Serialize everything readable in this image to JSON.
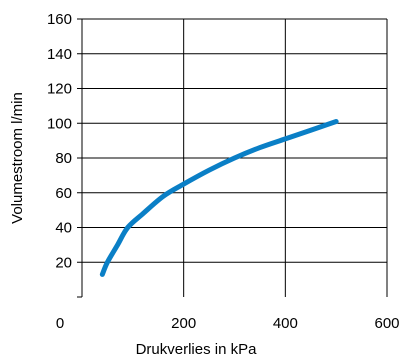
{
  "chart_data": {
    "type": "line",
    "title": "",
    "xlabel": "Drukverlies in kPa",
    "ylabel": "Volumestroom l/min",
    "xlim": [
      0,
      600
    ],
    "ylim": [
      0,
      160
    ],
    "x_ticks": [
      "0",
      "200",
      "400",
      "600"
    ],
    "y_ticks": [
      "20",
      "40",
      "60",
      "80",
      "100",
      "120",
      "140",
      "160"
    ],
    "grid": true,
    "legend": "none",
    "series_color": "#0a7fc6",
    "series": [
      {
        "x": [
          40,
          50,
          70,
          90,
          120,
          160,
          200,
          250,
          300,
          350,
          400,
          450,
          500
        ],
        "y": [
          13,
          20,
          30,
          40,
          48,
          58,
          65,
          73,
          80,
          86,
          91,
          96,
          101
        ]
      }
    ]
  }
}
